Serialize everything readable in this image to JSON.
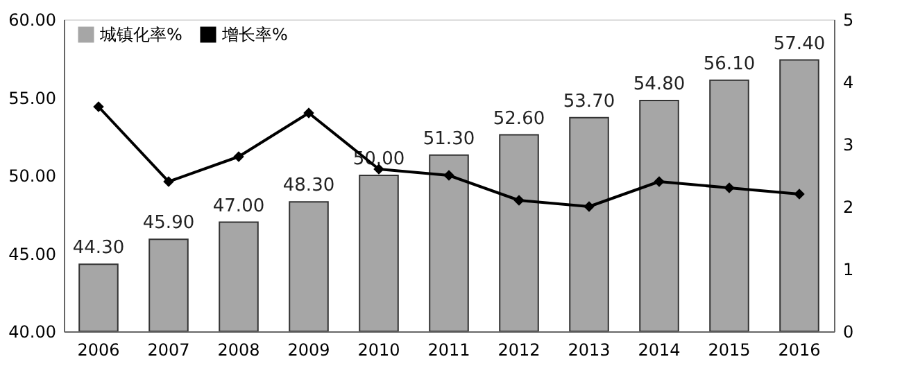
{
  "chart_data": {
    "type": "bar",
    "categories": [
      "2006",
      "2007",
      "2008",
      "2009",
      "2010",
      "2011",
      "2012",
      "2013",
      "2014",
      "2015",
      "2016"
    ],
    "series": [
      {
        "name": "城镇化率%",
        "color": "#a6a6a6",
        "values": [
          44.3,
          45.9,
          47.0,
          48.3,
          50.0,
          51.3,
          52.6,
          53.7,
          54.8,
          56.1,
          57.4
        ],
        "value_labels": [
          "44.30",
          "45.90",
          "47.00",
          "48.30",
          "50.00",
          "51.30",
          "52.60",
          "53.70",
          "54.80",
          "56.10",
          "57.40"
        ]
      },
      {
        "name": "增长率%",
        "type": "line",
        "axis": "y2",
        "color": "#000000",
        "marker": "diamond",
        "values": [
          3.6,
          2.4,
          2.8,
          3.5,
          2.6,
          2.5,
          2.1,
          2.0,
          2.4,
          2.3,
          2.2
        ]
      }
    ],
    "ylim": [
      40,
      60
    ],
    "yticks": [
      {
        "value": 40,
        "label": "40.00"
      },
      {
        "value": 45,
        "label": "45.00"
      },
      {
        "value": 50,
        "label": "50.00"
      },
      {
        "value": 55,
        "label": "55.00"
      },
      {
        "value": 60,
        "label": "60.00"
      }
    ],
    "y2lim": [
      0,
      5
    ],
    "y2ticks": [
      0,
      1,
      2,
      3,
      4,
      5
    ],
    "grid": false,
    "legend": "top left"
  }
}
